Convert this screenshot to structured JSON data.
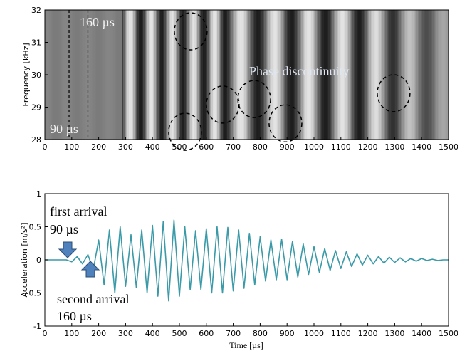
{
  "chart_data": [
    {
      "type": "image",
      "ylabel": "Frequency [kHz]",
      "xlim": [
        0,
        1500
      ],
      "xticks": [
        0,
        100,
        200,
        300,
        400,
        500,
        600,
        700,
        800,
        900,
        1000,
        1100,
        1200,
        1300,
        1400,
        1500
      ],
      "ylim": [
        28,
        32
      ],
      "yticks": [
        28,
        29,
        30,
        31,
        32
      ],
      "markers": [
        90,
        160
      ],
      "regions": [
        {
          "x": 542,
          "y": 31.34
        },
        {
          "x": 661,
          "y": 29.08
        },
        {
          "x": 778,
          "y": 29.25
        },
        {
          "x": 894,
          "y": 28.5
        },
        {
          "x": 521,
          "y": 28.24
        },
        {
          "x": 1296,
          "y": 29.43
        }
      ],
      "annotations": [
        "160 µs",
        "90 µs",
        "Phase discontinuity"
      ]
    },
    {
      "type": "line",
      "xlabel": "Time [µs]",
      "ylabel": "Acceleration [m/s²]",
      "xlim": [
        0,
        1500
      ],
      "xticks": [
        0,
        100,
        200,
        300,
        400,
        500,
        600,
        700,
        800,
        900,
        1000,
        1100,
        1200,
        1300,
        1400,
        1500
      ],
      "ylim": [
        -1,
        1
      ],
      "yticks": [
        -1,
        -0.5,
        0,
        0.5,
        1
      ],
      "color": "#3a9aa8",
      "x": [
        0,
        20,
        40,
        60,
        80,
        100,
        120,
        140,
        160,
        180,
        200,
        220,
        240,
        260,
        280,
        300,
        320,
        340,
        360,
        380,
        400,
        420,
        440,
        460,
        480,
        500,
        520,
        540,
        560,
        580,
        600,
        620,
        640,
        660,
        680,
        700,
        720,
        740,
        760,
        780,
        800,
        820,
        840,
        860,
        880,
        900,
        920,
        940,
        960,
        980,
        1000,
        1020,
        1040,
        1060,
        1080,
        1100,
        1120,
        1140,
        1160,
        1180,
        1200,
        1220,
        1240,
        1260,
        1280,
        1300,
        1320,
        1340,
        1360,
        1380,
        1400,
        1420,
        1440,
        1460,
        1480,
        1500
      ],
      "values": [
        0,
        0,
        0,
        0,
        0,
        -0.03,
        0.05,
        -0.06,
        0.08,
        -0.15,
        0.3,
        -0.38,
        0.45,
        -0.5,
        0.5,
        -0.4,
        0.38,
        -0.42,
        0.45,
        -0.5,
        0.52,
        -0.55,
        0.58,
        -0.62,
        0.6,
        -0.55,
        0.5,
        -0.45,
        0.44,
        -0.45,
        0.47,
        -0.5,
        0.5,
        -0.5,
        0.49,
        -0.47,
        0.45,
        -0.43,
        0.4,
        -0.38,
        0.35,
        -0.32,
        0.3,
        -0.3,
        0.31,
        -0.3,
        0.28,
        -0.26,
        0.24,
        -0.22,
        0.2,
        -0.19,
        0.17,
        -0.16,
        0.14,
        -0.13,
        0.12,
        -0.1,
        0.09,
        -0.08,
        0.07,
        -0.06,
        0.05,
        -0.05,
        0.04,
        -0.04,
        0.03,
        -0.03,
        0.02,
        -0.02,
        0.02,
        -0.01,
        0.01,
        -0.01,
        0,
        0
      ],
      "annotations": [
        "first arrival",
        "90 µs",
        "second arrival",
        "160 µs"
      ]
    }
  ]
}
